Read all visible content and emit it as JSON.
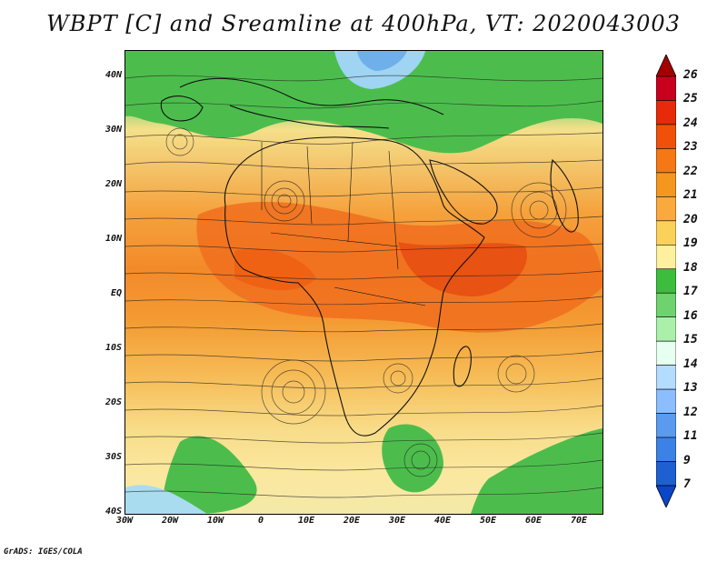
{
  "title": "WBPT [C] and Sreamline at 400hPa, VT: 2020043003",
  "credit": "GrADS: IGES/COLA",
  "map": {
    "lat_labels": [
      "40N",
      "30N",
      "20N",
      "10N",
      "EQ",
      "10S",
      "20S",
      "30S",
      "40S"
    ],
    "lon_labels": [
      "30W",
      "20W",
      "10W",
      "0",
      "10E",
      "20E",
      "30E",
      "40E",
      "50E",
      "60E",
      "70E"
    ],
    "lat_range": [
      -40,
      45
    ],
    "lon_range": [
      -30,
      75
    ]
  },
  "colorbar": {
    "labels": [
      "26",
      "25",
      "24",
      "23",
      "22",
      "21",
      "20",
      "19",
      "18",
      "17",
      "16",
      "15",
      "14",
      "13",
      "12",
      "11",
      "9",
      "7"
    ],
    "colors": [
      "#a50000",
      "#c8001e",
      "#e62a0a",
      "#f0500a",
      "#f57814",
      "#f5961e",
      "#faaa3c",
      "#fad25a",
      "#fff0a0",
      "#3cbe3c",
      "#6ed26e",
      "#aaf0aa",
      "#e6fff0",
      "#b4dcff",
      "#8cbeff",
      "#5a9bf0",
      "#3c82e6",
      "#1e5fd2",
      "#0a46c8"
    ]
  }
}
